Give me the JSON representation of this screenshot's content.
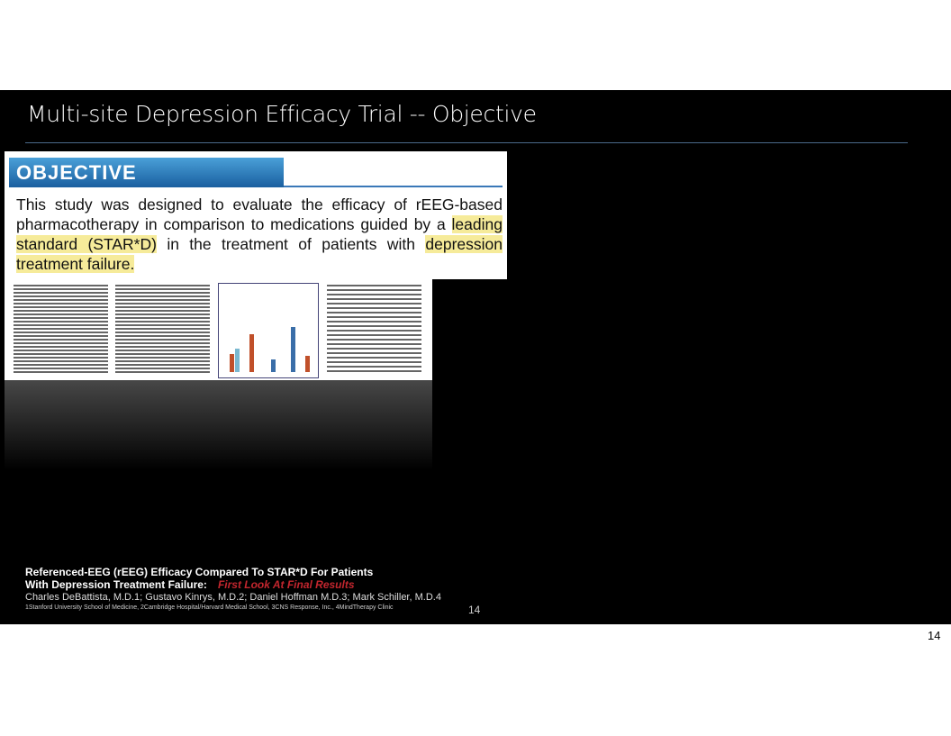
{
  "slide": {
    "title": "Multi-site Depression Efficacy Trial -- Objective",
    "page_number": "14"
  },
  "objective": {
    "heading": "OBJECTIVE",
    "text_parts": [
      "This study was designed to evaluate the efficacy of rEEG-based pharmacotherapy in comparison to medications guided by a ",
      "leading standard (STAR*D)",
      " in the treatment of patients with ",
      "depression treatment failure."
    ],
    "highlight_color": "#f6eb9a"
  },
  "poster": {
    "title_line1": "Referenced-EEG (rEEG) Efficacy Compared To STAR*D For Patients",
    "title_line2": "With Depression Treatment Failure:",
    "title_highlight": "First Look At Final Results",
    "authors": "Charles DeBattista, M.D.1; Gustavo Kinrys, M.D.2; Daniel Hoffman M.D.3; Mark Schiller, M.D.4",
    "affiliations": "1Stanford University School of Medicine, 2Cambridge Hospital/Harvard Medical School, 3CNS Response, Inc., 4MindTherapy Clinic",
    "inner_page_number": "14"
  }
}
